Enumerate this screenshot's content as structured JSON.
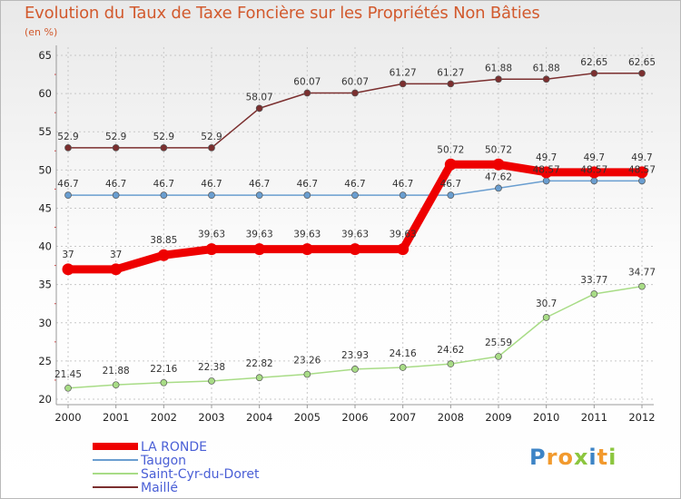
{
  "chart_data": {
    "type": "line",
    "title": "Evolution du Taux de Taxe Foncière sur les Propriétés Non Bâties",
    "unit_label": "(en %)",
    "ylim": [
      20,
      65
    ],
    "yticks": [
      "20",
      "25",
      "30",
      "35",
      "40",
      "45",
      "50",
      "55",
      "60",
      "65"
    ],
    "x": [
      "2000",
      "2001",
      "2002",
      "2003",
      "2004",
      "2005",
      "2006",
      "2007",
      "2008",
      "2009",
      "2010",
      "2011",
      "2012"
    ],
    "series": [
      {
        "name": "Maillé",
        "color": "#7b2f2f",
        "values": [
          52.9,
          52.9,
          52.9,
          52.9,
          58.07,
          60.07,
          60.07,
          61.27,
          61.27,
          61.88,
          61.88,
          62.65,
          62.65
        ],
        "labels": [
          "52.9",
          "52.9",
          "52.9",
          "52.9",
          "58.07",
          "60.07",
          "60.07",
          "61.27",
          "61.27",
          "61.88",
          "61.88",
          "62.65",
          "62.65"
        ]
      },
      {
        "name": "Saint-Cyr-du-Doret",
        "color": "#a8dc86",
        "values": [
          21.45,
          21.88,
          22.16,
          22.38,
          22.82,
          23.26,
          23.93,
          24.16,
          24.62,
          25.59,
          30.7,
          33.77,
          34.77
        ],
        "labels": [
          "21.45",
          "21.88",
          "22.16",
          "22.38",
          "22.82",
          "23.26",
          "23.93",
          "24.16",
          "24.62",
          "25.59",
          "30.7",
          "33.77",
          "34.77"
        ]
      },
      {
        "name": "Taugon",
        "color": "#6a9ed0",
        "values": [
          46.7,
          46.7,
          46.7,
          46.7,
          46.7,
          46.7,
          46.7,
          46.7,
          46.7,
          47.62,
          48.57,
          48.57,
          48.57
        ],
        "labels": [
          "46.7",
          "46.7",
          "46.7",
          "46.7",
          "46.7",
          "46.7",
          "46.7",
          "46.7",
          "46.7",
          "47.62",
          "48.57",
          "48.57",
          "48.57"
        ]
      },
      {
        "name": "LA RONDE",
        "color": "#ee0000",
        "values": [
          37,
          37,
          38.85,
          39.63,
          39.63,
          39.63,
          39.63,
          39.63,
          50.72,
          50.72,
          49.7,
          49.7,
          49.7
        ],
        "labels": [
          "37",
          "37",
          "38.85",
          "39.63",
          "39.63",
          "39.63",
          "39.63",
          "39.63",
          "50.72",
          "50.72",
          "49.7",
          "49.7",
          "49.7"
        ]
      }
    ],
    "legend_order": [
      "LA RONDE",
      "Taugon",
      "Saint-Cyr-du-Doret",
      "Maillé"
    ],
    "grid": true
  },
  "logo": {
    "letters": [
      {
        "ch": "P",
        "color": "#3d84c6"
      },
      {
        "ch": "r",
        "color": "#f29a2e"
      },
      {
        "ch": "o",
        "color": "#f29a2e"
      },
      {
        "ch": "x",
        "color": "#8cc63f"
      },
      {
        "ch": "i",
        "color": "#3d84c6"
      },
      {
        "ch": "t",
        "color": "#f29a2e"
      },
      {
        "ch": "i",
        "color": "#8cc63f"
      }
    ]
  }
}
